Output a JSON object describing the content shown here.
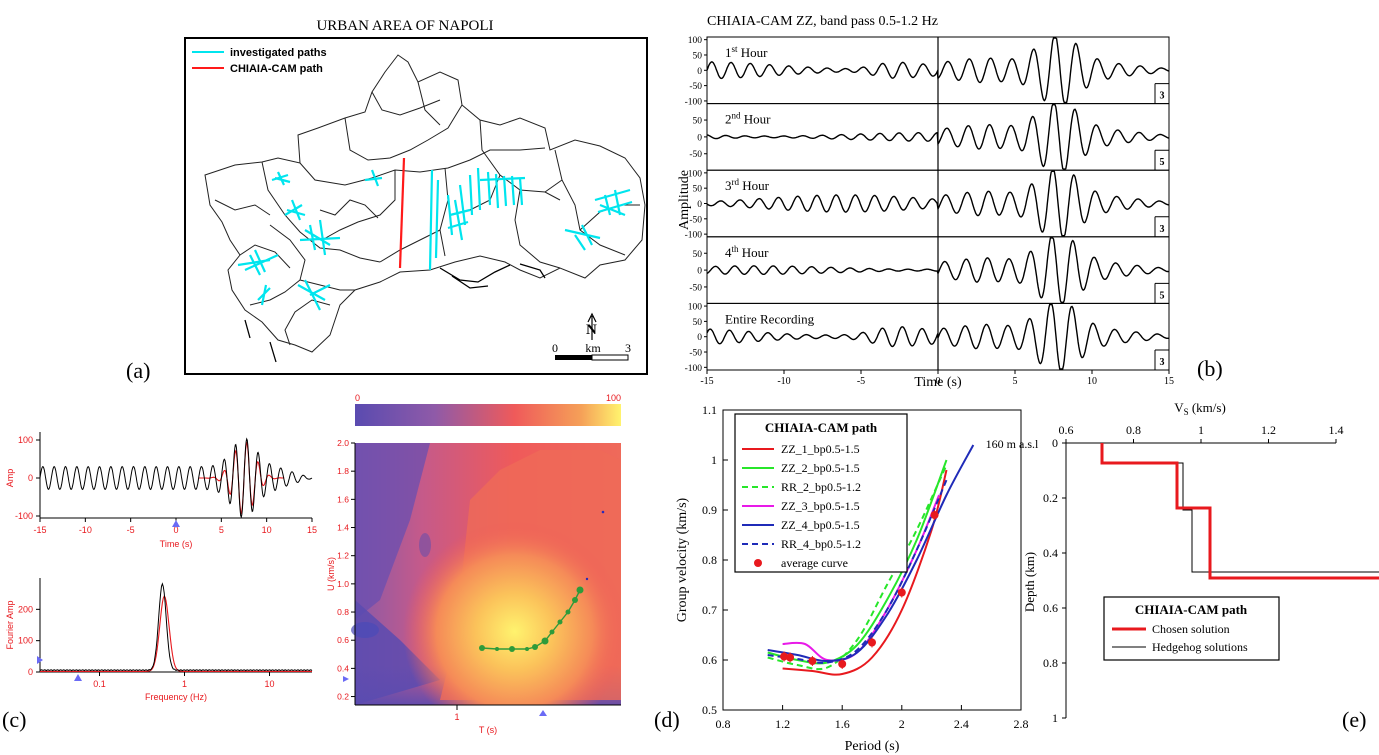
{
  "panels": {
    "a": {
      "letter": "(a)",
      "title": "URBAN AREA OF NAPOLI",
      "legend": [
        "investigated paths",
        "CHIAIA-CAM path"
      ],
      "legend_colors": [
        "#00e5ee",
        "#ff1a1a"
      ],
      "north": "N",
      "scale": [
        "0",
        "km",
        "3"
      ]
    },
    "b": {
      "letter": "(b)",
      "title": "CHIAIA-CAM ZZ, band pass 0.5-1.2 Hz",
      "ylabel": "Amplitude",
      "xlabel": "Time (s)",
      "xticks": [
        "-15",
        "-10",
        "-5",
        "0",
        "5",
        "10",
        "15"
      ],
      "traces": [
        {
          "label_main": "1",
          "label_sup": "st",
          "label_end": " Hour",
          "yticks": [
            "100",
            "50",
            "0",
            "-50",
            "-100"
          ],
          "corner": "3"
        },
        {
          "label_main": "2",
          "label_sup": "nd",
          "label_end": " Hour",
          "yticks": [
            "50",
            "0",
            "-50"
          ],
          "corner": "5"
        },
        {
          "label_main": "3",
          "label_sup": "rd",
          "label_end": " Hour",
          "yticks": [
            "100",
            "50",
            "0",
            "-50",
            "-100"
          ],
          "corner": "3"
        },
        {
          "label_main": "4",
          "label_sup": "th",
          "label_end": " Hour",
          "yticks": [
            "50",
            "0",
            "-50"
          ],
          "corner": "5"
        },
        {
          "label_main": "Entire Recording",
          "label_sup": "",
          "label_end": "",
          "yticks": [
            "100",
            "50",
            "0",
            "-50",
            "-100"
          ],
          "corner": "3"
        }
      ]
    },
    "c": {
      "letter": "(c)",
      "seis": {
        "ylabel": "Amp",
        "xlabel": "Time (s)",
        "xticks": [
          "-15",
          "-10",
          "-5",
          "0",
          "5",
          "10",
          "15"
        ],
        "yticks": [
          "100",
          "0",
          "-100"
        ]
      },
      "spec": {
        "ylabel": "Fourier Amp",
        "xlabel": "Frequency (Hz)",
        "xticks": [
          "0.1",
          "1",
          "10"
        ],
        "yticks": [
          "200",
          "100",
          "0"
        ]
      },
      "ftan": {
        "colorbar": [
          "0",
          "100"
        ],
        "ylabel": "U (km/s)",
        "xlabel": "T (s)",
        "xticks": [
          "1"
        ],
        "yticks": [
          "2.0",
          "1.8",
          "1.6",
          "1.4",
          "1.2",
          "1.0",
          "0.8",
          "0.6",
          "0.4",
          "0.2"
        ]
      }
    },
    "d": {
      "letter": "(d)"
    },
    "e": {
      "letter": "(e)",
      "xlabel_main": "V",
      "xlabel_sub": "S",
      "xlabel_end": " (km/s)",
      "ylabel": "Depth (km)",
      "elev": "160 m a.s.l",
      "xticks": [
        "0.6",
        "0.8",
        "1",
        "1.2",
        "1.4"
      ],
      "yticks": [
        "0",
        "0.2",
        "0.4",
        "0.6",
        "0.8",
        "1"
      ],
      "legend_title": "CHIAIA-CAM path",
      "legend": [
        "Chosen solution",
        "Hedgehog solutions"
      ]
    }
  },
  "chart_data": [
    {
      "type": "line",
      "panel": "d",
      "xlabel": "Period (s)",
      "ylabel": "Group velocity (km/s)",
      "xlim": [
        0.8,
        2.8
      ],
      "ylim": [
        0.5,
        1.1
      ],
      "xticks": [
        "0.8",
        "1.2",
        "1.6",
        "2",
        "2.4",
        "2.8"
      ],
      "yticks": [
        "1.1",
        "1",
        "0.9",
        "0.8",
        "0.7",
        "0.6",
        "0.5"
      ],
      "legend_title": "CHIAIA-CAM path",
      "series": [
        {
          "name": "ZZ_1_bp0.5-1.5",
          "color": "#e8191e",
          "dash": "solid",
          "x": [
            1.2,
            1.4,
            1.6,
            1.8,
            2.0,
            2.2,
            2.3
          ],
          "y": [
            0.583,
            0.578,
            0.572,
            0.605,
            0.7,
            0.86,
            0.98
          ]
        },
        {
          "name": "ZZ_2_bp0.5-1.5",
          "color": "#27e62a",
          "dash": "solid",
          "x": [
            1.1,
            1.3,
            1.5,
            1.7,
            1.9,
            2.1,
            2.3
          ],
          "y": [
            0.615,
            0.6,
            0.595,
            0.63,
            0.72,
            0.84,
            1.0
          ]
        },
        {
          "name": "RR_2_bp0.5-1.2",
          "color": "#27e62a",
          "dash": "dashed",
          "x": [
            1.1,
            1.3,
            1.5,
            1.7,
            1.9,
            2.1,
            2.3
          ],
          "y": [
            0.605,
            0.59,
            0.585,
            0.64,
            0.75,
            0.86,
            0.99
          ]
        },
        {
          "name": "ZZ_3_bp0.5-1.5",
          "color": "#e81ae8",
          "dash": "solid",
          "x": [
            1.2,
            1.35,
            1.5,
            1.7,
            1.9,
            2.1,
            2.25
          ],
          "y": [
            0.632,
            0.632,
            0.6,
            0.615,
            0.7,
            0.82,
            0.93
          ]
        },
        {
          "name": "ZZ_4_bp0.5-1.5",
          "color": "#1f2bb8",
          "dash": "solid",
          "x": [
            1.1,
            1.3,
            1.5,
            1.7,
            1.9,
            2.1,
            2.3,
            2.48
          ],
          "y": [
            0.62,
            0.61,
            0.598,
            0.615,
            0.69,
            0.8,
            0.93,
            1.03
          ]
        },
        {
          "name": "RR_4_bp0.5-1.2",
          "color": "#1f2bb8",
          "dash": "dashed",
          "x": [
            1.1,
            1.3,
            1.5,
            1.7,
            1.9,
            2.1,
            2.3
          ],
          "y": [
            0.61,
            0.602,
            0.595,
            0.62,
            0.7,
            0.82,
            0.96
          ]
        },
        {
          "name": "average curve",
          "color": "#e8191e",
          "marker": "dot",
          "x": [
            1.21,
            1.25,
            1.4,
            1.6,
            1.8,
            2.0,
            2.22
          ],
          "y": [
            0.607,
            0.605,
            0.598,
            0.592,
            0.635,
            0.735,
            0.89
          ]
        }
      ]
    }
  ]
}
